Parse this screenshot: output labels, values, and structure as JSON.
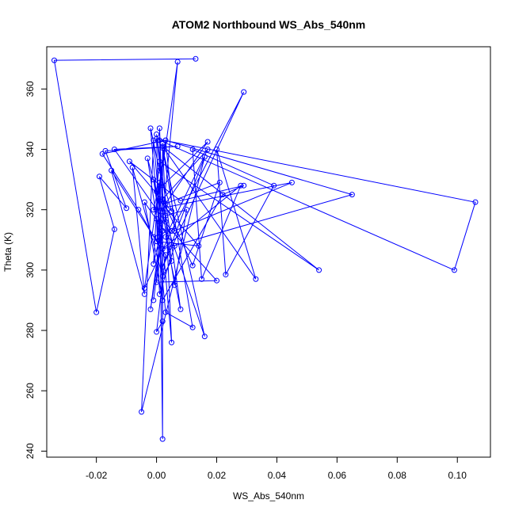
{
  "chart_data": {
    "type": "scatter",
    "title": "ATOM2 Northbound WS_Abs_540nm",
    "xlabel": "WS_Abs_540nm",
    "ylabel": "Theta (K)",
    "xlim": [
      -0.0365,
      0.111
    ],
    "ylim": [
      238,
      374
    ],
    "x_ticks": [
      -0.02,
      0.0,
      0.02,
      0.04,
      0.06,
      0.08,
      0.1
    ],
    "x_tick_labels": [
      "-0.02",
      "0.00",
      "0.02",
      "0.04",
      "0.06",
      "0.08",
      "0.10"
    ],
    "y_ticks": [
      240,
      260,
      280,
      300,
      320,
      340,
      360
    ],
    "y_tick_labels": [
      "240",
      "260",
      "280",
      "300",
      "320",
      "340",
      "360"
    ],
    "grid": false,
    "legend": "none",
    "color": "#0000ff",
    "series": [
      {
        "name": "",
        "style": "lines+points",
        "points": [
          [
            0.013,
            370
          ],
          [
            -0.034,
            369.5
          ],
          [
            -0.02,
            286
          ],
          [
            -0.014,
            313.5
          ],
          [
            -0.019,
            331
          ],
          [
            -0.01,
            320.5
          ],
          [
            -0.017,
            339.5
          ],
          [
            0.007,
            341
          ],
          [
            -0.014,
            340
          ],
          [
            0.005,
            313
          ],
          [
            0.029,
            359
          ],
          [
            0.002,
            301
          ],
          [
            0.016,
            337.5
          ],
          [
            -0.005,
            253
          ],
          [
            -0.001,
            343
          ],
          [
            0.005,
            276
          ],
          [
            0.002,
            342
          ],
          [
            0.002,
            244
          ],
          [
            0.001,
            329
          ],
          [
            -0.001,
            320
          ],
          [
            0.045,
            329
          ],
          [
            0.006,
            313
          ],
          [
            0.003,
            343
          ],
          [
            0.065,
            325
          ],
          [
            0.002,
            307
          ],
          [
            0.028,
            328
          ],
          [
            0.015,
            297
          ],
          [
            0.012,
            340
          ],
          [
            0.039,
            328
          ],
          [
            0.023,
            298.5
          ],
          [
            0.02,
            340
          ],
          [
            0.033,
            297
          ],
          [
            0.002,
            341
          ],
          [
            0.054,
            300
          ],
          [
            0.001,
            336
          ],
          [
            0.0,
            326
          ],
          [
            0.017,
            342.5
          ],
          [
            0.003,
            322
          ],
          [
            0.021,
            329
          ],
          [
            0.012,
            301.5
          ],
          [
            0.002,
            323.5
          ],
          [
            0.017,
            340
          ],
          [
            0.003,
            311
          ],
          [
            0.008,
            287
          ],
          [
            0.0,
            345
          ],
          [
            0.003,
            316
          ],
          [
            0.016,
            278
          ],
          [
            0.002,
            340.5
          ],
          [
            0.012,
            281
          ],
          [
            0.003,
            286
          ],
          [
            0.0,
            317
          ],
          [
            0.001,
            292
          ],
          [
            0.006,
            308
          ],
          [
            -0.004,
            322.5
          ],
          [
            0.002,
            290
          ],
          [
            0.022,
            325
          ],
          [
            0.029,
            328
          ],
          [
            0.008,
            323
          ],
          [
            -0.009,
            336
          ],
          [
            0.005,
            319.5
          ],
          [
            0.001,
            333
          ],
          [
            -0.002,
            347
          ],
          [
            0.001,
            312
          ],
          [
            -0.001,
            311
          ],
          [
            0.001,
            309
          ],
          [
            0.0,
            343.5
          ],
          [
            0.106,
            322.5
          ],
          [
            0.099,
            300
          ],
          [
            0.001,
            343
          ],
          [
            0.002,
            319.5
          ],
          [
            0.006,
            295
          ],
          [
            0.01,
            320
          ],
          [
            0.003,
            318
          ],
          [
            0.005,
            303
          ],
          [
            0.002,
            298
          ],
          [
            -0.008,
            334
          ],
          [
            -0.004,
            292
          ],
          [
            -0.015,
            333
          ],
          [
            0.003,
            305
          ],
          [
            0.0,
            279.5
          ],
          [
            0.002,
            283
          ],
          [
            0.001,
            347
          ],
          [
            0.002,
            319
          ],
          [
            -0.003,
            337
          ],
          [
            0.001,
            311
          ],
          [
            -0.001,
            302
          ],
          [
            0.0,
            320
          ],
          [
            0.007,
            369
          ],
          [
            0.0,
            296
          ],
          [
            0.02,
            296.5
          ],
          [
            0.005,
            313
          ],
          [
            -0.004,
            294
          ],
          [
            0.003,
            343
          ],
          [
            -0.018,
            338.5
          ],
          [
            -0.006,
            320
          ],
          [
            0.0,
            309.5
          ],
          [
            0.014,
            308
          ],
          [
            0.001,
            323
          ],
          [
            -0.001,
            330
          ],
          [
            0.001,
            316
          ],
          [
            0.001,
            310
          ],
          [
            -0.002,
            287
          ],
          [
            0.002,
            313
          ],
          [
            -0.001,
            290
          ]
        ]
      }
    ]
  }
}
